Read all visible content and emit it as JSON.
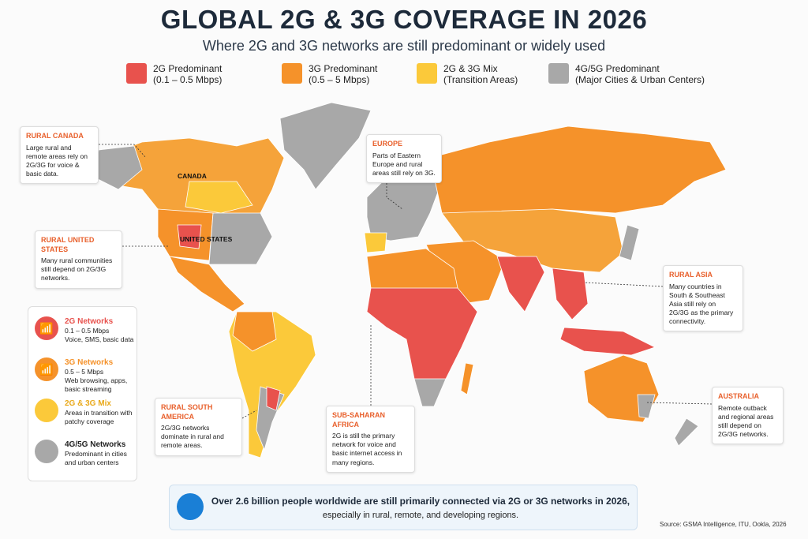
{
  "header": {
    "title": "GLOBAL 2G & 3G COVERAGE IN 2026",
    "subtitle": "Where 2G and 3G networks are still predominant or widely used"
  },
  "legend": [
    {
      "label": "2G Predominant",
      "detail": "(0.1 – 0.5 Mbps)",
      "color": "#e8524d"
    },
    {
      "label": "3G Predominant",
      "detail": "(0.5 – 5 Mbps)",
      "color": "#f5922a"
    },
    {
      "label": "2G & 3G Mix",
      "detail": "(Transition Areas)",
      "color": "#fbc93a"
    },
    {
      "label": "4G/5G Predominant",
      "detail": "(Major Cities & Urban Centers)",
      "color": "#a8a8a8"
    }
  ],
  "map_labels": [
    "CANADA",
    "UNITED STATES"
  ],
  "callouts": [
    {
      "title": "RURAL CANADA",
      "text": "Large rural and remote areas rely on 2G/3G for voice & basic data."
    },
    {
      "title": "EUROPE",
      "text": "Parts of Eastern Europe and rural areas still rely on 3G."
    },
    {
      "title": "RURAL UNITED STATES",
      "text": "Many rural communities still depend on 2G/3G networks."
    },
    {
      "title": "RURAL ASIA",
      "text": "Many countries in South & Southeast Asia still rely on 2G/3G as the primary connectivity."
    },
    {
      "title": "RURAL SOUTH AMERICA",
      "text": "2G/3G networks dominate in rural and remote areas."
    },
    {
      "title": "SUB-SAHARAN AFRICA",
      "text": "2G is still the primary network for voice and basic internet access in many regions."
    },
    {
      "title": "AUSTRALIA",
      "text": "Remote outback and regional areas still depend on 2G/3G networks."
    }
  ],
  "side_legend": [
    {
      "title": "2G Networks",
      "lines": [
        "0.1 – 0.5 Mbps",
        "Voice, SMS, basic data"
      ]
    },
    {
      "title": "3G Networks",
      "lines": [
        "0.5 – 5 Mbps",
        "Web browsing, apps, basic streaming"
      ]
    },
    {
      "title": "2G & 3G Mix",
      "lines": [
        "Areas in transition with patchy coverage"
      ]
    },
    {
      "title": "4G/5G Networks",
      "lines": [
        "Predominant in cities and urban centers"
      ]
    }
  ],
  "banner": {
    "line1": "Over 2.6 billion people worldwide are still primarily connected via 2G or 3G networks in 2026,",
    "line2": "especially in rural, remote, and developing regions."
  },
  "source": "Source: GSMA Intelligence, ITU, Ookla, 2026"
}
